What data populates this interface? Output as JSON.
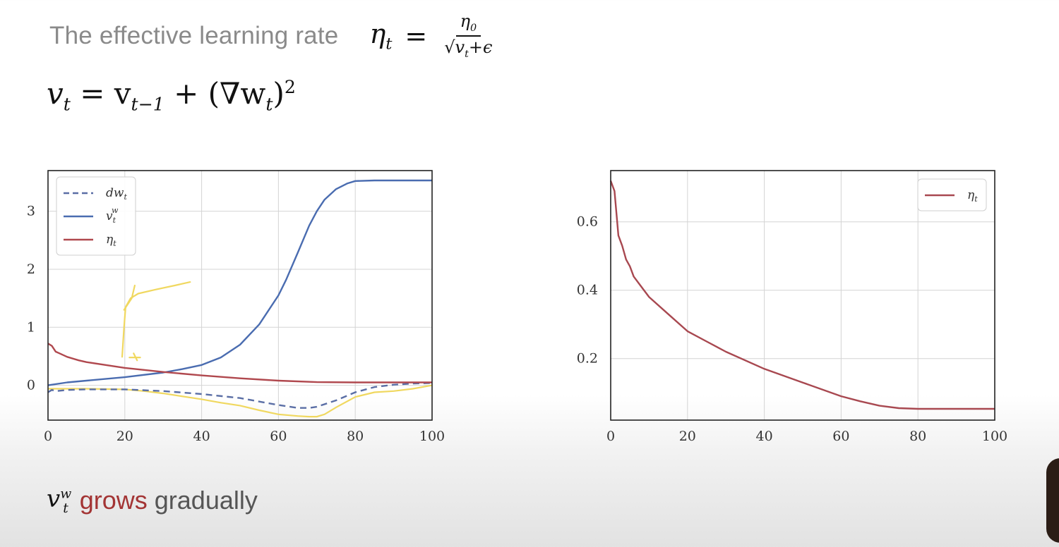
{
  "slide": {
    "heading_label": "The effective learning rate",
    "eq1_lhs": "η",
    "eq1_lhs_sub": "t",
    "eq1_equals": "=",
    "eq1_num": "η",
    "eq1_num_sub": "0",
    "eq1_den": "√v",
    "eq1_den_sub": "t",
    "eq1_den_tail": "+ϵ",
    "eq2_v": "v",
    "eq2_v_sub": "t",
    "eq2_mid": " = v",
    "eq2_mid_sub": "t−1",
    "eq2_tail": " + (∇w",
    "eq2_tail_sub": "t",
    "eq2_close": ")",
    "eq2_sup": "2",
    "bottom_v": "v",
    "bottom_v_sup": "w",
    "bottom_v_sub": "t",
    "bottom_grows": "grows",
    "bottom_rest": "gradually"
  },
  "chart_data": [
    {
      "type": "line",
      "xlim": [
        0,
        100
      ],
      "ylim": [
        -0.6,
        3.7
      ],
      "xticks": [
        0,
        20,
        40,
        60,
        80,
        100
      ],
      "yticks": [
        0,
        1,
        2,
        3
      ],
      "grid": true,
      "legend_position": "top-left",
      "series": [
        {
          "name": "dw_t",
          "legend_label": "dw",
          "legend_sub": "t",
          "color": "#5a6ea5",
          "dash": "dashed",
          "x": [
            0,
            1,
            2,
            5,
            10,
            20,
            30,
            40,
            50,
            55,
            60,
            65,
            68,
            70,
            75,
            80,
            85,
            90,
            95,
            100
          ],
          "y": [
            -0.12,
            -0.08,
            -0.1,
            -0.08,
            -0.07,
            -0.07,
            -0.1,
            -0.15,
            -0.22,
            -0.28,
            -0.34,
            -0.39,
            -0.39,
            -0.37,
            -0.26,
            -0.12,
            -0.03,
            0.01,
            0.03,
            0.04
          ]
        },
        {
          "name": "v_t^w",
          "legend_label": "v",
          "legend_sub": "t",
          "legend_sup": "w",
          "color": "#4a6cb0",
          "dash": "solid",
          "x": [
            0,
            5,
            10,
            20,
            30,
            35,
            40,
            45,
            50,
            55,
            60,
            62,
            65,
            68,
            70,
            72,
            75,
            78,
            80,
            85,
            90,
            100
          ],
          "y": [
            0.0,
            0.05,
            0.08,
            0.14,
            0.22,
            0.28,
            0.35,
            0.48,
            0.7,
            1.05,
            1.55,
            1.82,
            2.28,
            2.75,
            3.0,
            3.2,
            3.38,
            3.48,
            3.52,
            3.53,
            3.53,
            3.53
          ]
        },
        {
          "name": "eta_t",
          "legend_label": "η",
          "legend_sub": "t",
          "color": "#b0484e",
          "dash": "solid",
          "x": [
            0,
            1,
            2,
            3,
            5,
            8,
            10,
            15,
            20,
            30,
            40,
            50,
            60,
            70,
            80,
            90,
            100
          ],
          "y": [
            0.72,
            0.68,
            0.58,
            0.55,
            0.49,
            0.43,
            0.4,
            0.35,
            0.3,
            0.23,
            0.17,
            0.12,
            0.08,
            0.055,
            0.05,
            0.05,
            0.05
          ]
        }
      ]
    },
    {
      "type": "line",
      "xlim": [
        0,
        100
      ],
      "ylim": [
        0.02,
        0.75
      ],
      "xticks": [
        0,
        20,
        40,
        60,
        80,
        100
      ],
      "yticks": [
        0.2,
        0.4,
        0.6
      ],
      "grid": true,
      "legend_position": "top-right",
      "series": [
        {
          "name": "eta_t",
          "legend_label": "η",
          "legend_sub": "t",
          "color": "#a84850",
          "dash": "solid",
          "x": [
            0,
            1,
            2,
            3,
            4,
            5,
            6,
            8,
            10,
            15,
            20,
            25,
            30,
            40,
            50,
            60,
            65,
            70,
            75,
            80,
            90,
            100
          ],
          "y": [
            0.72,
            0.69,
            0.56,
            0.53,
            0.49,
            0.47,
            0.44,
            0.41,
            0.38,
            0.33,
            0.28,
            0.25,
            0.22,
            0.17,
            0.13,
            0.09,
            0.075,
            0.062,
            0.055,
            0.053,
            0.053,
            0.053
          ]
        }
      ]
    }
  ],
  "annotations": {
    "color": "#f0d860",
    "stroke": "yellow-pen",
    "handwritten_curve": [
      [
        19.3,
        0.49
      ],
      [
        19.8,
        1.0
      ],
      [
        20.2,
        1.35
      ],
      [
        21.5,
        1.5
      ],
      [
        23.5,
        1.58
      ],
      [
        28,
        1.65
      ],
      [
        33,
        1.72
      ],
      [
        37,
        1.78
      ]
    ],
    "handwritten_tick": [
      [
        19.8,
        1.3
      ],
      [
        21.8,
        1.5
      ],
      [
        22.6,
        1.72
      ]
    ],
    "handwritten_cross": [
      [
        [
          22.3,
          0.55
        ],
        [
          23.2,
          0.43
        ]
      ],
      [
        [
          21.2,
          0.48
        ],
        [
          24.0,
          0.48
        ]
      ]
    ],
    "gradient_trace": {
      "x": [
        0,
        5,
        10,
        20,
        25,
        30,
        40,
        45,
        50,
        55,
        60,
        65,
        68,
        70,
        72,
        75,
        80,
        85,
        90,
        95,
        100
      ],
      "y": [
        -0.06,
        -0.06,
        -0.06,
        -0.07,
        -0.1,
        -0.14,
        -0.24,
        -0.3,
        -0.35,
        -0.43,
        -0.5,
        -0.53,
        -0.54,
        -0.54,
        -0.5,
        -0.38,
        -0.2,
        -0.12,
        -0.1,
        -0.06,
        0.0
      ]
    }
  }
}
